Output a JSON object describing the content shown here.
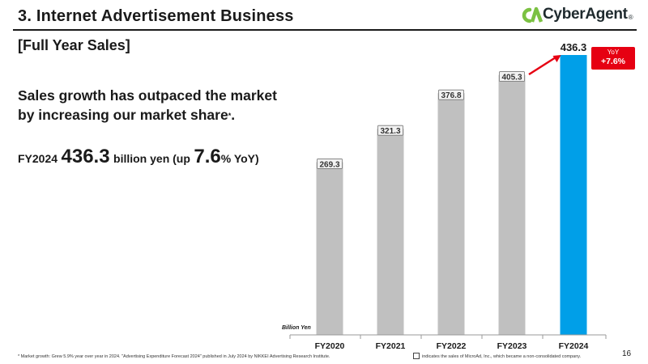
{
  "header": {
    "title": "3.  Internet Advertisement Business",
    "logo_text": "CyberAgent",
    "logo_mark": "®"
  },
  "section": {
    "title": "[Full Year Sales]"
  },
  "headline": {
    "line1": "Sales growth has outpaced the market",
    "line2": "by increasing our market share",
    "note_mark": "*",
    "line2_end": "."
  },
  "kpi": {
    "year": "FY2024",
    "value": "436.3",
    "unit": "billion yen (up",
    "pct": "7.6",
    "pct_suffix": "% YoY)"
  },
  "yoy_badge": {
    "label": "YoY",
    "value": "+7.6%"
  },
  "chart_data": {
    "type": "bar",
    "categories": [
      "FY2020",
      "FY2021",
      "FY2022",
      "FY2023",
      "FY2024"
    ],
    "values": [
      269.3,
      321.3,
      376.8,
      405.3,
      436.3
    ],
    "value_labels": [
      "269.3",
      "321.3",
      "376.8",
      "405.3",
      "436.3"
    ],
    "title": "[Full Year Sales]",
    "xlabel": "",
    "ylabel": "Billion Yen",
    "ylim": [
      0,
      436.3
    ],
    "grid": false,
    "highlight_index": 4,
    "colors": {
      "bar": "#c0c0c0",
      "highlight": "#009fe8",
      "accent": "#e60012",
      "axis": "#999999"
    }
  },
  "footnote": "* Market growth: Grew 5.9% year over year in 2024. \"Advertising Expenditure Forecast 2024\" published in July 2024 by NIKKEI Advertising Research Institute.",
  "legend_note": "indicates the sales of MicroAd, Inc., which became a non-consolidated company.",
  "page_number": "16",
  "icons": {
    "logo": "cyberagent-logo-icon",
    "arrow": "red-arrow-icon"
  }
}
